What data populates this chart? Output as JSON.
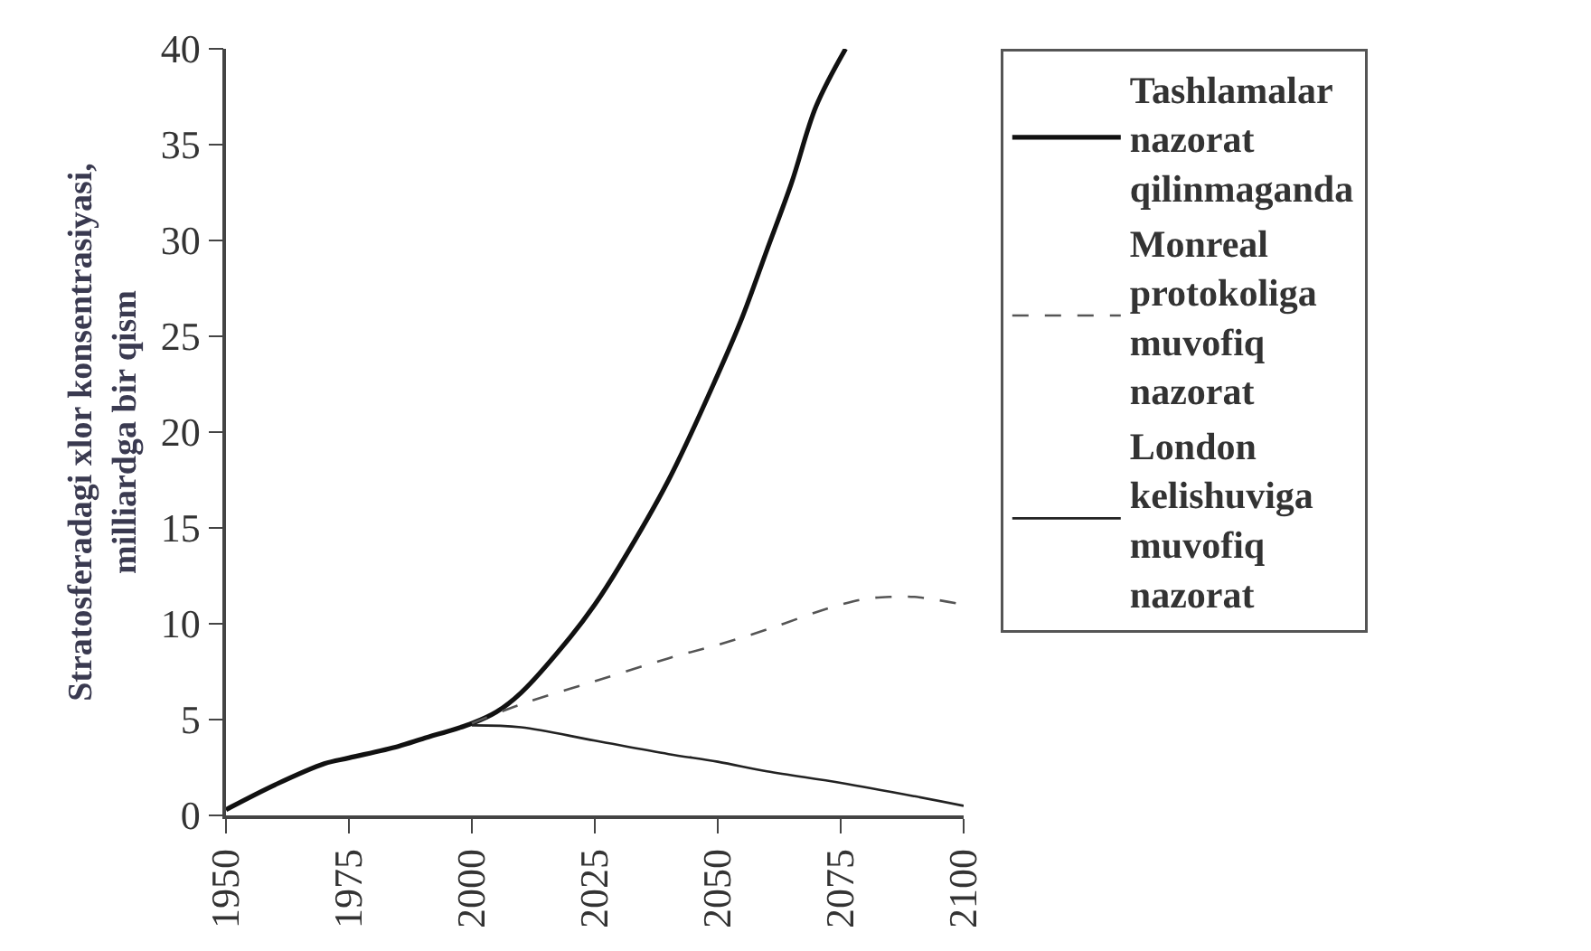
{
  "chart_data": {
    "type": "line",
    "ylabel": "Stratosferadagi xlor konsentrasiyasi,\nmilliardga bir qism",
    "xlim": [
      1950,
      2100
    ],
    "xticks": [
      1950,
      1975,
      2000,
      2025,
      2050,
      2075,
      2100
    ],
    "ylim": [
      0,
      40
    ],
    "yticks": [
      0,
      5,
      10,
      15,
      20,
      25,
      30,
      35,
      40
    ],
    "legend": "right",
    "marker": "none",
    "series": [
      {
        "name": "Tashlamalar nazorat qilinmaganda",
        "color": "#111111",
        "line_style": "solid",
        "x": [
          1950,
          1960,
          1970,
          1975,
          1985,
          1990,
          2000,
          2005,
          2010,
          2020,
          2025,
          2030,
          2040,
          2050,
          2055,
          2060,
          2065,
          2070,
          2076
        ],
        "values": [
          0.3,
          1.6,
          2.7,
          3.0,
          3.6,
          4.0,
          4.8,
          5.4,
          6.4,
          9.3,
          11.0,
          13.0,
          17.5,
          23.0,
          26.0,
          29.5,
          33.0,
          37.0,
          40.0
        ]
      },
      {
        "name": "Monreal protokoliga muvofiq nazorat",
        "color": "#555555",
        "line_style": "dashed",
        "x": [
          2000,
          2010,
          2025,
          2040,
          2050,
          2060,
          2070,
          2075,
          2080,
          2085,
          2090,
          2100
        ],
        "values": [
          4.8,
          5.8,
          7.0,
          8.2,
          8.9,
          9.7,
          10.6,
          11.0,
          11.3,
          11.4,
          11.4,
          11.0
        ]
      },
      {
        "name": "London kelishuviga muvofiq nazorat",
        "color": "#222222",
        "line_style": "solid",
        "x": [
          2000,
          2010,
          2025,
          2040,
          2050,
          2060,
          2075,
          2090,
          2100
        ],
        "values": [
          4.7,
          4.6,
          3.9,
          3.2,
          2.8,
          2.3,
          1.7,
          1.0,
          0.5
        ]
      }
    ]
  }
}
